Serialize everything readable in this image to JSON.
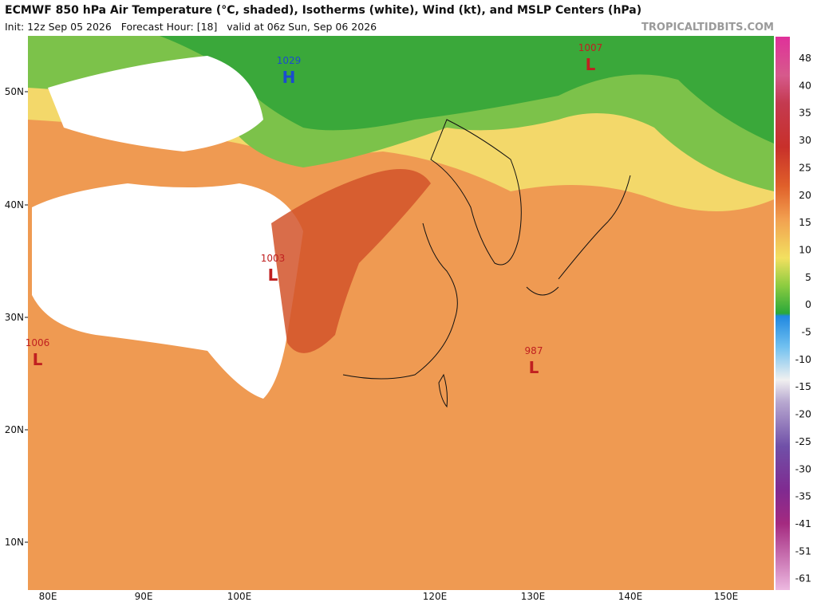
{
  "header": {
    "title": "ECMWF 850 hPa Air Temperature (°C, shaded), Isotherms (white), Wind (kt), and MSLP Centers (hPa)",
    "subtitle": "Init: 12z Sep 05 2026   Forecast Hour: [18]   valid at 06z Sun, Sep 06 2026",
    "brand": "TROPICALTIDBITS.COM"
  },
  "map": {
    "lat_labels": [
      "50N",
      "40N",
      "30N",
      "20N",
      "10N"
    ],
    "lon_labels": [
      "80E",
      "90E",
      "100E",
      "120E",
      "130E",
      "140E",
      "150E"
    ],
    "pressure_centers": [
      {
        "value": "1029",
        "symbol": "H"
      },
      {
        "value": "1007",
        "symbol": "L"
      },
      {
        "value": "1003",
        "symbol": "L"
      },
      {
        "value": "1006",
        "symbol": "L"
      },
      {
        "value": "987",
        "symbol": "L"
      }
    ]
  },
  "colorbar": {
    "labels": [
      "48",
      "40",
      "35",
      "30",
      "25",
      "20",
      "15",
      "10",
      "5",
      "0",
      "-5",
      "-10",
      "-15",
      "-20",
      "-25",
      "-30",
      "-35",
      "-41",
      "-51",
      "-61"
    ]
  }
}
